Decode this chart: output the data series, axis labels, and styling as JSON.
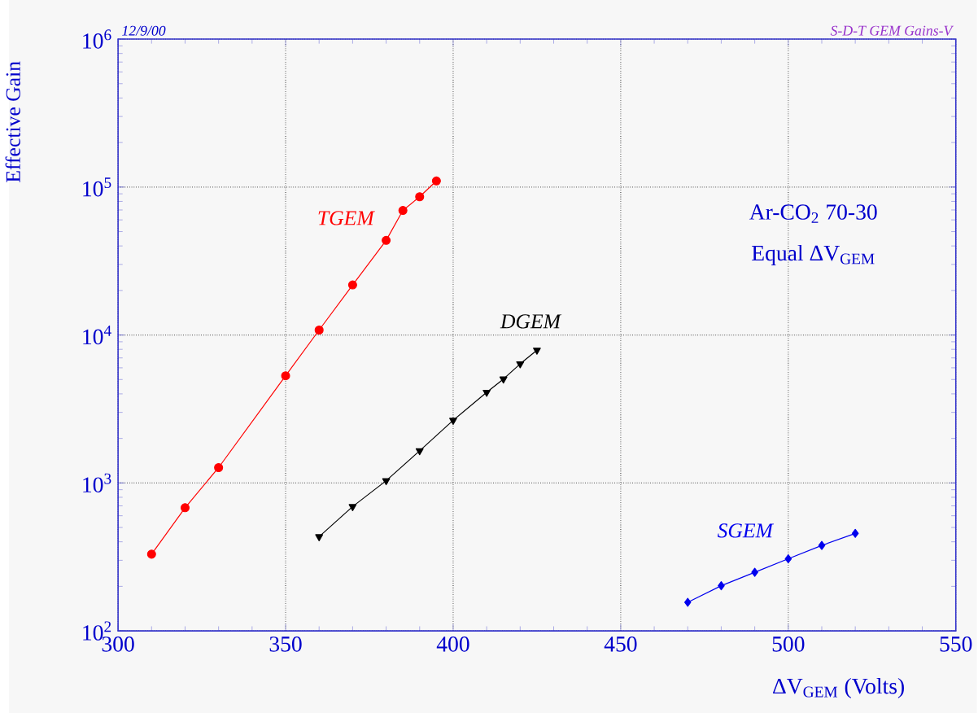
{
  "chart_data": {
    "type": "line",
    "xlabel": "ΔV$_{GEM}$ (Volts)",
    "ylabel": "Effective Gain",
    "annotations": [
      "12/9/00",
      "S-D-T GEM Gains-V",
      "Ar-CO$_{2}$ 70-30",
      "Equal ΔV$_{GEM}$"
    ],
    "series": [
      {
        "name": "TGEM",
        "color": "#ff0000",
        "marker": "circle",
        "x": [
          310,
          320,
          330,
          350,
          360,
          370,
          380,
          385,
          390,
          395
        ],
        "values": [
          330,
          680,
          1270,
          5300,
          10800,
          21800,
          43600,
          69500,
          86000,
          110000
        ]
      },
      {
        "name": "DGEM",
        "color": "#000000",
        "marker": "triangle",
        "x": [
          360,
          370,
          380,
          390,
          400,
          410,
          415,
          420,
          425
        ],
        "values": [
          433,
          692,
          1035,
          1650,
          2650,
          4100,
          5040,
          6380,
          7900
        ]
      },
      {
        "name": "SGEM",
        "color": "#0000ee",
        "marker": "diamond",
        "x": [
          470,
          480,
          490,
          500,
          510,
          520
        ],
        "values": [
          156,
          202,
          249,
          307,
          378,
          456
        ]
      }
    ],
    "xlim": [
      300,
      550
    ],
    "xticks": [
      300,
      350,
      400,
      450,
      500,
      550
    ],
    "ylim": [
      100,
      1000000
    ],
    "yticks": [
      {
        "value": 100,
        "label": "10$^{2}$"
      },
      {
        "value": 1000,
        "label": "10$^{3}$"
      },
      {
        "value": 10000,
        "label": "10$^{4}$"
      },
      {
        "value": 100000,
        "label": "10$^{5}$"
      },
      {
        "value": 1000000,
        "label": "10$^{6}$"
      }
    ],
    "log": "y",
    "grid": true,
    "line_style": "solid"
  }
}
